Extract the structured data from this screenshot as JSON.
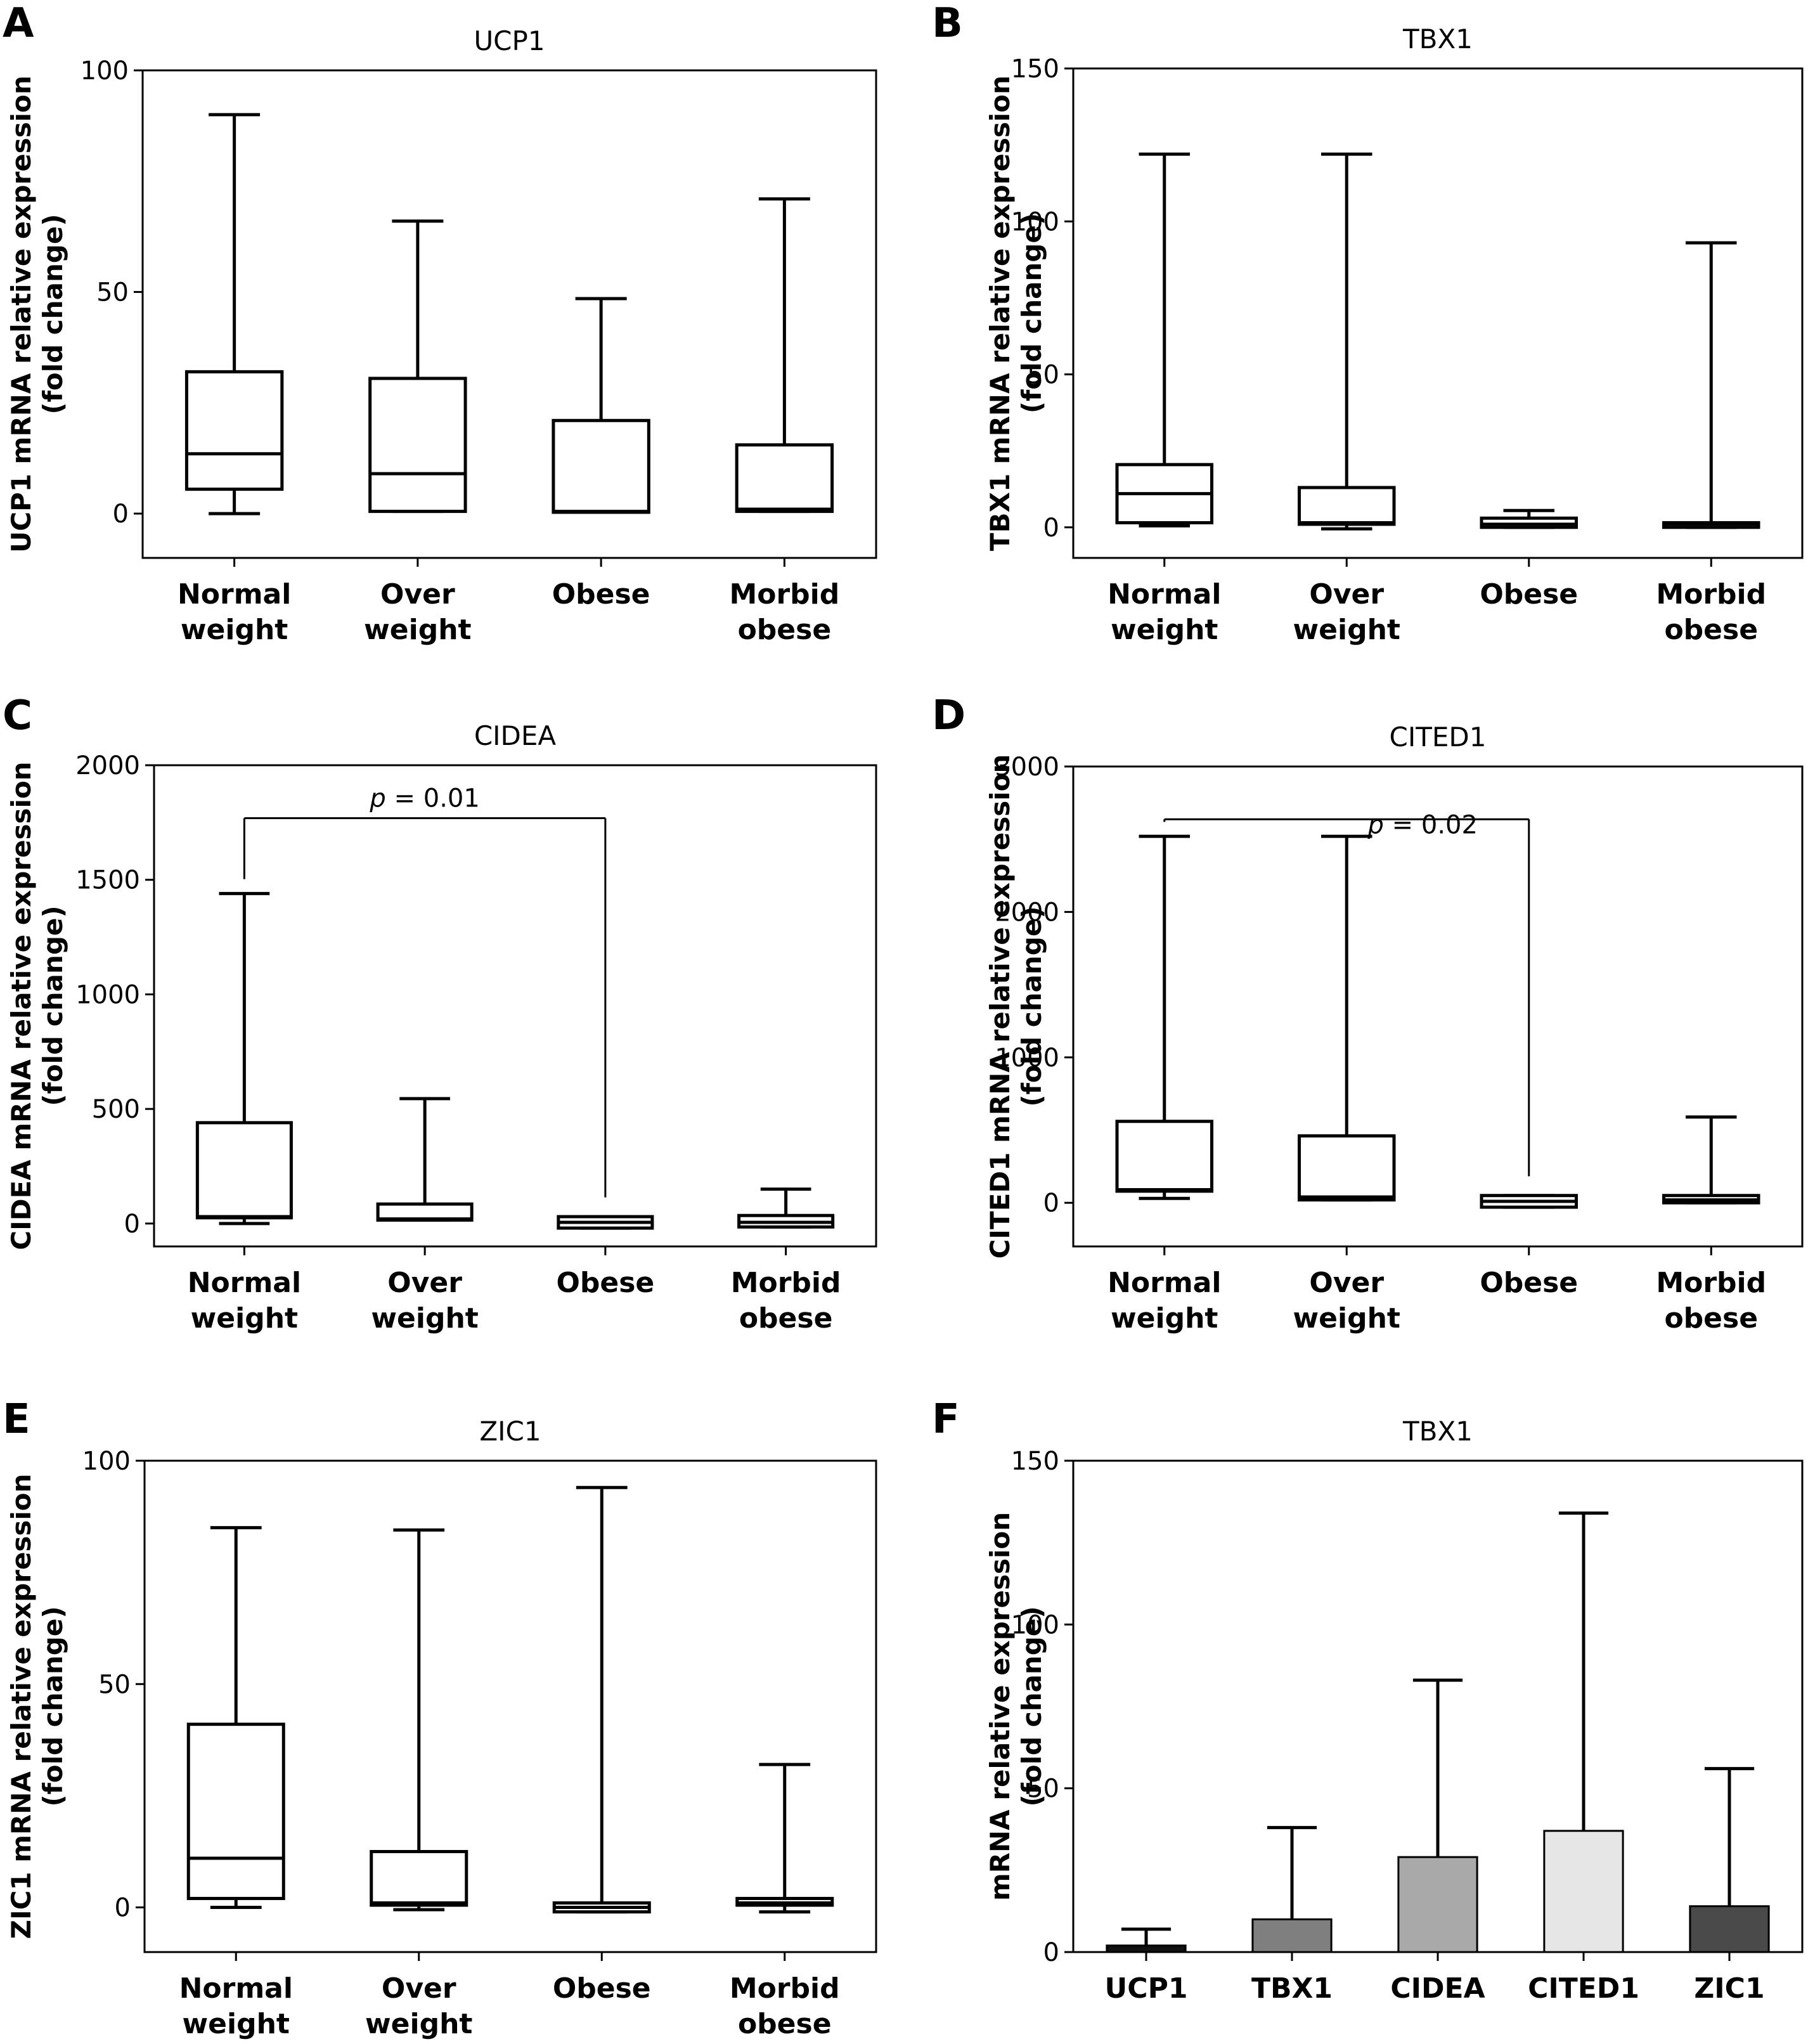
{
  "chart_data": [
    {
      "panel": "A",
      "type": "box",
      "title": "UCP1",
      "ylabel": [
        "UCP1 mRNA relative expression",
        "(fold change)"
      ],
      "ylim": [
        -10,
        100
      ],
      "yticks": [
        0,
        50,
        100
      ],
      "categories": [
        [
          "Normal",
          "weight"
        ],
        [
          "Over",
          "weight"
        ],
        [
          "Obese"
        ],
        [
          "Morbid",
          "obese"
        ]
      ],
      "boxes": [
        {
          "min": 0,
          "q1": 5.5,
          "median": 13.5,
          "q3": 32,
          "max": 90
        },
        {
          "min": 0.5,
          "q1": 0.5,
          "median": 9,
          "q3": 30.5,
          "max": 66
        },
        {
          "min": 0.3,
          "q1": 0.3,
          "median": 0.5,
          "q3": 21,
          "max": 48.5
        },
        {
          "min": 0.5,
          "q1": 0.5,
          "median": 1,
          "q3": 15.5,
          "max": 71
        }
      ]
    },
    {
      "panel": "B",
      "type": "box",
      "title": "TBX1",
      "ylabel": [
        "TBX1 mRNA relative expression",
        "(fold change)"
      ],
      "ylim": [
        -10,
        150
      ],
      "yticks": [
        0,
        50,
        100,
        150
      ],
      "categories": [
        [
          "Normal",
          "weight"
        ],
        [
          "Over",
          "weight"
        ],
        [
          "Obese"
        ],
        [
          "Morbid",
          "obese"
        ]
      ],
      "boxes": [
        {
          "min": 0.5,
          "q1": 1.5,
          "median": 11,
          "q3": 20.5,
          "max": 122
        },
        {
          "min": -0.5,
          "q1": 1,
          "median": 1.5,
          "q3": 13,
          "max": 122
        },
        {
          "min": 0,
          "q1": 0,
          "median": 1,
          "q3": 3,
          "max": 5.5
        },
        {
          "min": 0,
          "q1": 0,
          "median": 1,
          "q3": 1.5,
          "max": 93
        }
      ]
    },
    {
      "panel": "C",
      "type": "box",
      "title": "CIDEA",
      "ylabel": [
        "CIDEA mRNA relative expression",
        "(fold change)"
      ],
      "ylim": [
        -100,
        2000
      ],
      "yticks": [
        0,
        500,
        1000,
        1500,
        2000
      ],
      "categories": [
        [
          "Normal",
          "weight"
        ],
        [
          "Over",
          "weight"
        ],
        [
          "Obese"
        ],
        [
          "Morbid",
          "obese"
        ]
      ],
      "boxes": [
        {
          "min": 0,
          "q1": 25,
          "median": 30,
          "q3": 440,
          "max": 1440
        },
        {
          "min": 15,
          "q1": 15,
          "median": 20,
          "q3": 85,
          "max": 545
        },
        {
          "min": -20,
          "q1": -20,
          "median": 5,
          "q3": 30,
          "max": 30
        },
        {
          "min": -15,
          "q1": -15,
          "median": 5,
          "q3": 35,
          "max": 150
        }
      ],
      "annotation": {
        "text_italic": "p",
        "text": " = 0.01",
        "from": 0,
        "to": 2
      }
    },
    {
      "panel": "D",
      "type": "box",
      "title": "CITED1",
      "ylabel": [
        "CITED1 mRNA relative expression",
        "(fold change)"
      ],
      "ylim": [
        -300,
        3000
      ],
      "yticks": [
        0,
        1000,
        2000,
        3000
      ],
      "categories": [
        [
          "Normal",
          "weight"
        ],
        [
          "Over",
          "weight"
        ],
        [
          "Obese"
        ],
        [
          "Morbid",
          "obese"
        ]
      ],
      "boxes": [
        {
          "min": 30,
          "q1": 80,
          "median": 90,
          "q3": 560,
          "max": 2520
        },
        {
          "min": 20,
          "q1": 20,
          "median": 40,
          "q3": 460,
          "max": 2520
        },
        {
          "min": -30,
          "q1": -30,
          "median": 10,
          "q3": 50,
          "max": 50
        },
        {
          "min": 0,
          "q1": 0,
          "median": 20,
          "q3": 50,
          "max": 590
        }
      ],
      "annotation": {
        "text_italic": "p",
        "text": " = 0.02",
        "from": 0,
        "to": 2
      }
    },
    {
      "panel": "E",
      "type": "box",
      "title": "ZIC1",
      "ylabel": [
        "ZIC1 mRNA relative expression",
        "(fold change)"
      ],
      "ylim": [
        -10,
        100
      ],
      "yticks": [
        0,
        50,
        100
      ],
      "categories": [
        [
          "Normal",
          "weight"
        ],
        [
          "Over",
          "weight"
        ],
        [
          "Obese"
        ],
        [
          "Morbid",
          "obese"
        ]
      ],
      "boxes": [
        {
          "min": 0,
          "q1": 2,
          "median": 11,
          "q3": 41,
          "max": 85
        },
        {
          "min": -0.5,
          "q1": 0.5,
          "median": 1,
          "q3": 12.5,
          "max": 84.5
        },
        {
          "min": -1,
          "q1": -1,
          "median": 0,
          "q3": 1,
          "max": 94
        },
        {
          "min": -1,
          "q1": 0.5,
          "median": 1,
          "q3": 2,
          "max": 32
        }
      ]
    },
    {
      "panel": "F",
      "type": "bar",
      "title": "TBX1",
      "ylabel": [
        "mRNA relative expression",
        "(fold change)"
      ],
      "ylim": [
        0,
        150
      ],
      "yticks": [
        0,
        50,
        100,
        150
      ],
      "categories": [
        "UCP1",
        "TBX1",
        "CIDEA",
        "CITED1",
        "ZIC1"
      ],
      "values": [
        2,
        10,
        29,
        37,
        14
      ],
      "errors": [
        7,
        38,
        83,
        134,
        56
      ],
      "colors": [
        "#111111",
        "#7f7f7f",
        "#a9a9a9",
        "#e6e6e6",
        "#4a4a4a"
      ]
    }
  ]
}
